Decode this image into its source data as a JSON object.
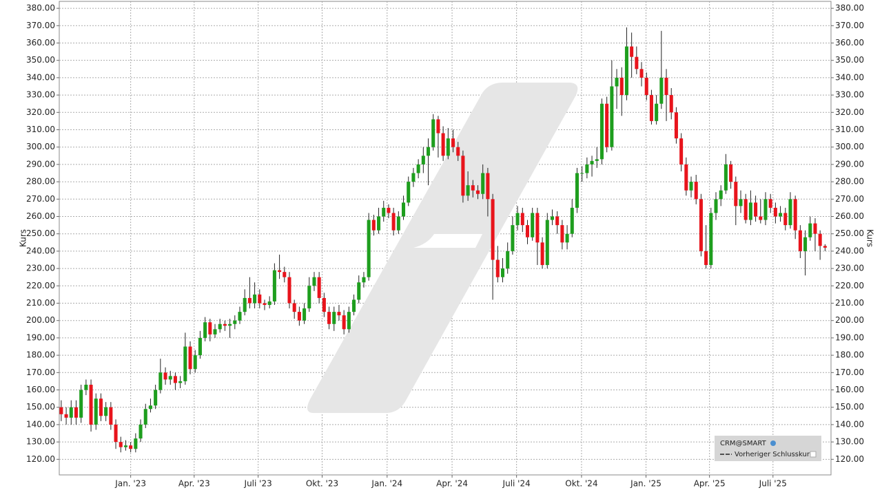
{
  "chart_data": {
    "type": "candlestick",
    "y_label": "Kurs",
    "legend": [
      "CRM@SMART",
      "Vorheriger Schlusskurs"
    ],
    "up_color": "#1e9e1e",
    "down_color": "#e8141c",
    "grid": true,
    "xlim": [
      -0.4,
      155.2
    ],
    "xticks": [
      {
        "value": 14.0,
        "label": "Jan. '23"
      },
      {
        "value": 26.8,
        "label": "Apr. '23"
      },
      {
        "value": 39.7,
        "label": "Juli '23"
      },
      {
        "value": 52.6,
        "label": "Okt. '23"
      },
      {
        "value": 65.7,
        "label": "Jan. '24"
      },
      {
        "value": 78.8,
        "label": "Apr. '24"
      },
      {
        "value": 91.8,
        "label": "Juli '24"
      },
      {
        "value": 104.9,
        "label": "Okt. '24"
      },
      {
        "value": 117.9,
        "label": "Jan. '25"
      },
      {
        "value": 130.7,
        "label": "Apr. '25"
      },
      {
        "value": 143.5,
        "label": "Juli '25"
      }
    ],
    "ylim": [
      111,
      384
    ],
    "yticks": [
      {
        "value": 120,
        "label": "120.00"
      },
      {
        "value": 130,
        "label": "130.00"
      },
      {
        "value": 140,
        "label": "140.00"
      },
      {
        "value": 150,
        "label": "150.00"
      },
      {
        "value": 160,
        "label": "160.00"
      },
      {
        "value": 170,
        "label": "170.00"
      },
      {
        "value": 180,
        "label": "180.00"
      },
      {
        "value": 190,
        "label": "190.00"
      },
      {
        "value": 200,
        "label": "200.00"
      },
      {
        "value": 210,
        "label": "210.00"
      },
      {
        "value": 220,
        "label": "220.00"
      },
      {
        "value": 230,
        "label": "230.00"
      },
      {
        "value": 240,
        "label": "240.00"
      },
      {
        "value": 250,
        "label": "250.00"
      },
      {
        "value": 260,
        "label": "260.00"
      },
      {
        "value": 270,
        "label": "270.00"
      },
      {
        "value": 280,
        "label": "280.00"
      },
      {
        "value": 290,
        "label": "290.00"
      },
      {
        "value": 300,
        "label": "300.00"
      },
      {
        "value": 310,
        "label": "310.00"
      },
      {
        "value": 320,
        "label": "320.00"
      },
      {
        "value": 330,
        "label": "330.00"
      },
      {
        "value": 340,
        "label": "340.00"
      },
      {
        "value": 350,
        "label": "350.00"
      },
      {
        "value": 360,
        "label": "360.00"
      },
      {
        "value": 370,
        "label": "370.00"
      },
      {
        "value": 380,
        "label": "380.00"
      }
    ],
    "open": [
      150,
      146,
      144,
      150,
      144,
      160,
      163,
      140,
      155,
      145,
      150,
      140,
      130,
      127,
      128,
      126,
      132,
      140,
      149,
      151,
      160,
      170,
      166,
      168,
      164,
      165,
      185,
      172,
      180,
      190,
      199,
      192,
      195,
      198,
      197,
      198,
      200,
      205,
      213,
      210,
      215,
      210,
      209,
      211,
      229,
      228,
      225,
      210,
      205,
      200,
      207,
      220,
      225,
      213,
      205,
      198,
      205,
      203,
      195,
      205,
      212,
      222,
      225,
      258,
      252,
      260,
      265,
      262,
      252,
      260,
      268,
      280,
      285,
      290,
      295,
      300,
      316,
      308,
      295,
      305,
      300,
      295,
      272,
      278,
      275,
      273,
      285,
      270,
      235,
      225,
      230,
      240,
      255,
      262,
      255,
      248,
      262,
      245,
      232,
      258,
      260,
      255,
      245,
      250,
      265,
      285,
      285,
      290,
      292,
      293,
      325,
      300,
      335,
      340,
      330,
      358,
      352,
      345,
      340,
      330,
      315,
      325,
      340,
      330,
      320,
      305,
      290,
      275,
      280,
      270,
      240,
      232,
      262,
      270,
      275,
      290,
      280,
      266,
      270,
      258,
      268,
      260,
      258,
      270,
      265,
      260,
      262,
      255,
      270,
      252,
      240,
      248,
      256,
      250,
      243
    ],
    "high": [
      154,
      150,
      154,
      154,
      163,
      166,
      166,
      158,
      158,
      153,
      153,
      143,
      133,
      131,
      130,
      135,
      143,
      152,
      155,
      163,
      178,
      173,
      171,
      170,
      168,
      193,
      188,
      183,
      194,
      202,
      201,
      198,
      201,
      200,
      201,
      203,
      208,
      218,
      225,
      222,
      218,
      212,
      214,
      233,
      238,
      231,
      228,
      212,
      208,
      210,
      225,
      228,
      228,
      216,
      208,
      208,
      209,
      206,
      208,
      215,
      226,
      228,
      262,
      261,
      265,
      269,
      267,
      265,
      263,
      272,
      283,
      288,
      293,
      300,
      305,
      319,
      318,
      312,
      311,
      310,
      303,
      298,
      286,
      281,
      278,
      290,
      288,
      273,
      243,
      236,
      245,
      260,
      266,
      265,
      258,
      265,
      265,
      248,
      262,
      264,
      263,
      258,
      255,
      270,
      288,
      289,
      294,
      295,
      300,
      328,
      329,
      350,
      345,
      346,
      369,
      366,
      358,
      349,
      343,
      333,
      330,
      367,
      345,
      334,
      323,
      308,
      294,
      283,
      284,
      273,
      255,
      265,
      274,
      278,
      296,
      292,
      283,
      275,
      273,
      275,
      272,
      270,
      274,
      273,
      268,
      266,
      265,
      274,
      272,
      255,
      252,
      260,
      259,
      252,
      244
    ],
    "low": [
      142,
      140,
      140,
      140,
      141,
      157,
      136,
      137,
      142,
      142,
      137,
      126,
      124,
      125,
      124,
      124,
      130,
      138,
      147,
      149,
      158,
      163,
      163,
      160,
      161,
      163,
      169,
      170,
      178,
      188,
      188,
      190,
      193,
      194,
      190,
      195,
      198,
      203,
      207,
      207,
      207,
      206,
      207,
      209,
      224,
      222,
      207,
      201,
      197,
      198,
      205,
      217,
      210,
      202,
      195,
      194,
      200,
      192,
      193,
      203,
      210,
      219,
      223,
      249,
      250,
      257,
      259,
      249,
      250,
      258,
      266,
      277,
      282,
      285,
      278,
      298,
      294,
      292,
      293,
      297,
      292,
      268,
      269,
      271,
      270,
      270,
      260,
      212,
      222,
      222,
      227,
      238,
      252,
      251,
      244,
      246,
      232,
      230,
      230,
      255,
      250,
      241,
      241,
      248,
      262,
      280,
      282,
      283,
      288,
      290,
      297,
      298,
      322,
      318,
      327,
      340,
      342,
      335,
      327,
      313,
      313,
      322,
      315,
      316,
      302,
      286,
      272,
      271,
      267,
      237,
      230,
      230,
      258,
      266,
      273,
      276,
      255,
      262,
      256,
      255,
      257,
      256,
      255,
      262,
      256,
      257,
      252,
      253,
      247,
      236,
      226,
      246,
      240,
      235,
      240
    ],
    "close": [
      146,
      144,
      150,
      144,
      160,
      163,
      140,
      155,
      145,
      150,
      140,
      130,
      127,
      128,
      126,
      132,
      140,
      149,
      151,
      160,
      170,
      166,
      168,
      164,
      165,
      185,
      172,
      180,
      190,
      199,
      192,
      195,
      198,
      197,
      198,
      200,
      205,
      213,
      210,
      215,
      210,
      209,
      211,
      229,
      228,
      225,
      210,
      205,
      200,
      207,
      220,
      225,
      213,
      205,
      198,
      205,
      203,
      195,
      205,
      212,
      222,
      225,
      258,
      252,
      260,
      265,
      262,
      252,
      260,
      268,
      280,
      285,
      290,
      295,
      300,
      316,
      308,
      295,
      305,
      300,
      295,
      272,
      278,
      275,
      273,
      285,
      270,
      235,
      225,
      230,
      240,
      255,
      262,
      255,
      248,
      262,
      245,
      232,
      258,
      260,
      255,
      245,
      250,
      265,
      285,
      285,
      290,
      292,
      293,
      325,
      300,
      335,
      340,
      330,
      358,
      352,
      345,
      340,
      330,
      315,
      325,
      340,
      330,
      320,
      305,
      290,
      275,
      280,
      270,
      240,
      232,
      262,
      270,
      275,
      290,
      280,
      266,
      270,
      258,
      268,
      260,
      258,
      270,
      265,
      260,
      262,
      255,
      270,
      252,
      240,
      248,
      256,
      250,
      243,
      242
    ]
  }
}
